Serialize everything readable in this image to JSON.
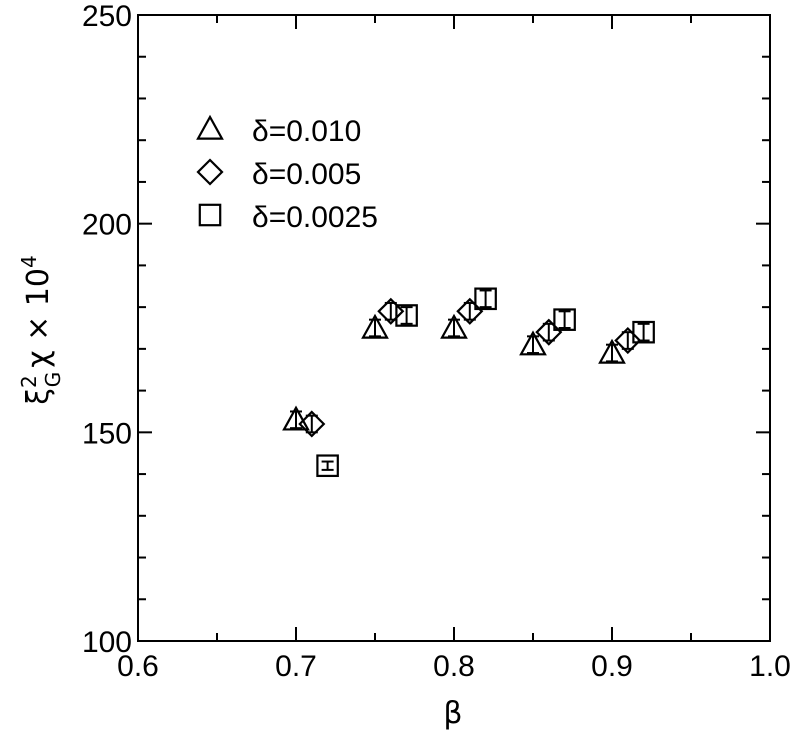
{
  "chart_data": {
    "type": "scatter",
    "xlabel": "β",
    "ylabel": {
      "base": "ξ",
      "sup": "2",
      "sub": "G",
      "rest": "χ × 10",
      "exp": "4"
    },
    "xlim": [
      0.6,
      1.0
    ],
    "ylim": [
      100,
      250
    ],
    "x_ticks": [
      "0.6",
      "0.7",
      "0.8",
      "0.9",
      "1.0"
    ],
    "y_ticks": [
      "100",
      "150",
      "200",
      "250"
    ],
    "grid": false,
    "legend_position": "upper-left",
    "series": [
      {
        "name": "δ=0.010",
        "marker": "triangle",
        "points": [
          {
            "x": 0.7,
            "y": 153,
            "err": 2
          },
          {
            "x": 0.75,
            "y": 175,
            "err": 2
          },
          {
            "x": 0.8,
            "y": 175,
            "err": 2
          },
          {
            "x": 0.85,
            "y": 171,
            "err": 2
          },
          {
            "x": 0.9,
            "y": 169,
            "err": 2
          }
        ]
      },
      {
        "name": "δ=0.005",
        "marker": "diamond",
        "points": [
          {
            "x": 0.71,
            "y": 152,
            "err": 2
          },
          {
            "x": 0.76,
            "y": 179,
            "err": 2
          },
          {
            "x": 0.81,
            "y": 179,
            "err": 2
          },
          {
            "x": 0.86,
            "y": 174,
            "err": 2
          },
          {
            "x": 0.91,
            "y": 172,
            "err": 2
          }
        ]
      },
      {
        "name": "δ=0.0025",
        "marker": "square",
        "points": [
          {
            "x": 0.72,
            "y": 142,
            "err": 1
          },
          {
            "x": 0.77,
            "y": 178,
            "err": 2
          },
          {
            "x": 0.82,
            "y": 182,
            "err": 2
          },
          {
            "x": 0.87,
            "y": 177,
            "err": 2
          },
          {
            "x": 0.92,
            "y": 174,
            "err": 2
          }
        ]
      }
    ]
  },
  "colors": {
    "axis": "#000000",
    "marker": "#000000",
    "background": "#ffffff"
  }
}
